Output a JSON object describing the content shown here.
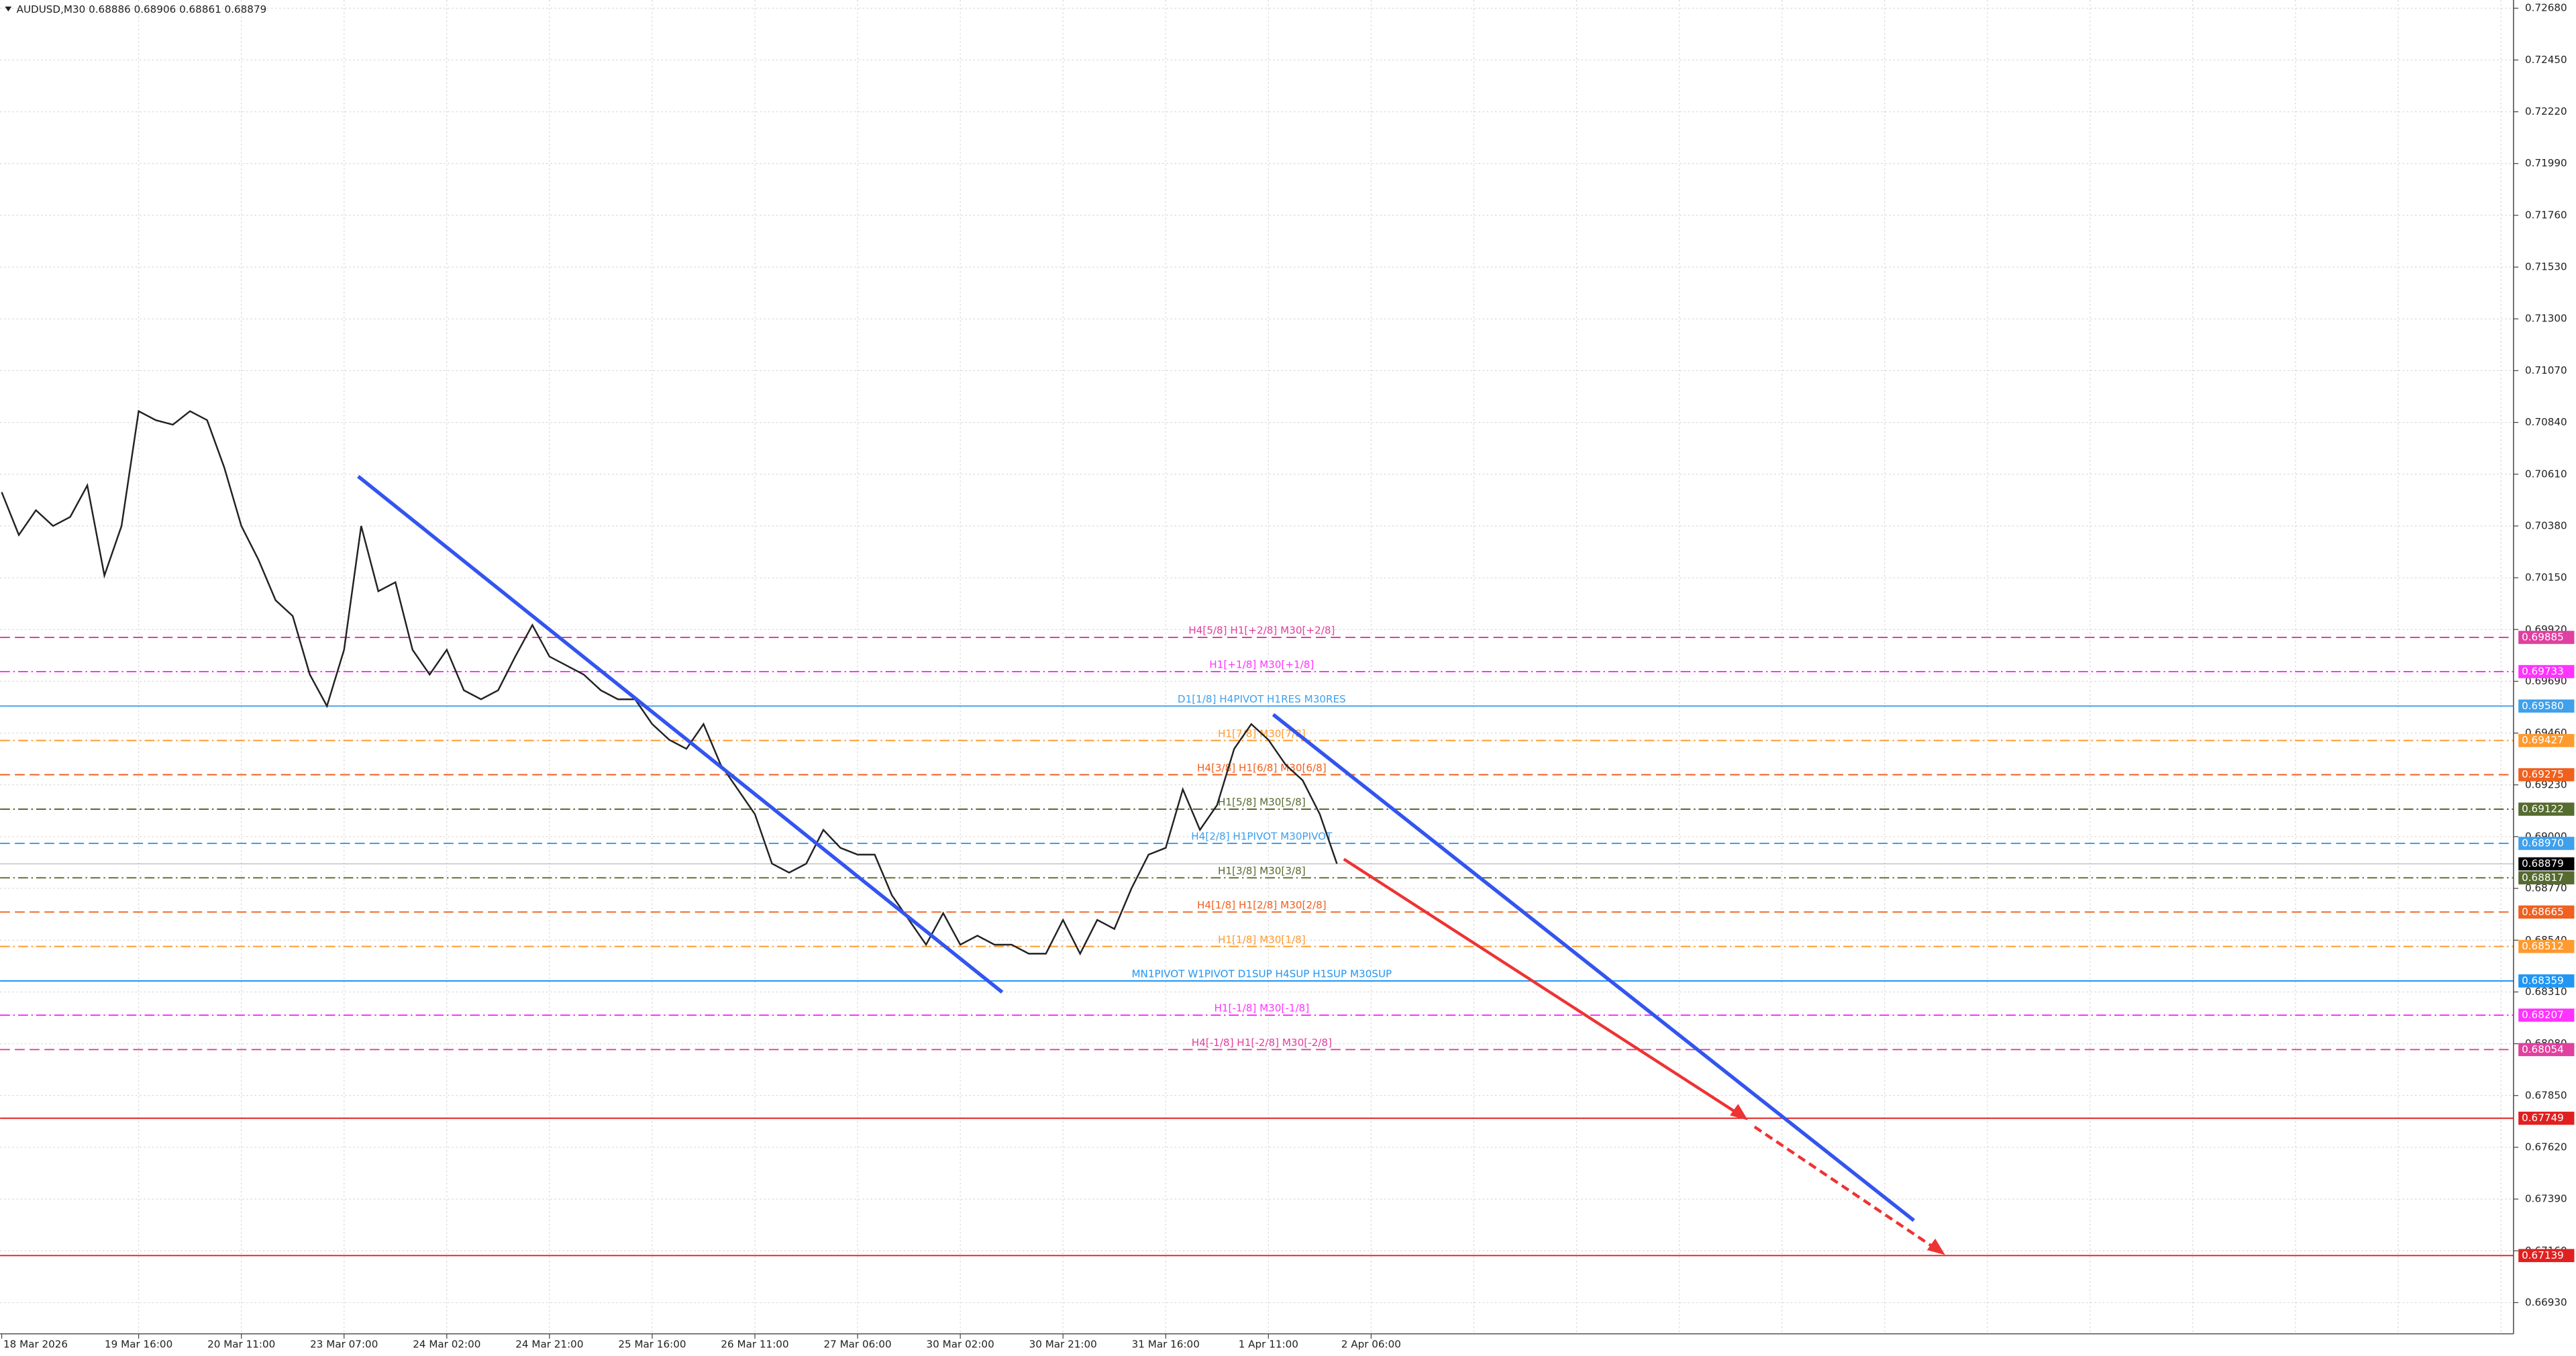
{
  "chart_data": {
    "type": "line",
    "header": "AUDUSD,M30  0.68886 0.68906 0.68861 0.68879",
    "color": "#222222",
    "grid": true,
    "categories": [
      "18 Mar 2026",
      null,
      null,
      null,
      null,
      null,
      null,
      null,
      "19 Mar 16:00",
      null,
      null,
      null,
      null,
      null,
      "20 Mar 11:00",
      null,
      null,
      null,
      null,
      null,
      "23 Mar 07:00",
      null,
      null,
      null,
      null,
      null,
      "24 Mar 02:00",
      null,
      null,
      null,
      null,
      null,
      "24 Mar 21:00",
      null,
      null,
      null,
      null,
      null,
      "25 Mar 16:00",
      null,
      null,
      null,
      null,
      null,
      "26 Mar 11:00",
      null,
      null,
      null,
      null,
      null,
      "27 Mar 06:00",
      null,
      null,
      null,
      null,
      null,
      "30 Mar 02:00",
      null,
      null,
      null,
      null,
      null,
      "30 Mar 21:00",
      null,
      null,
      null,
      null,
      null,
      "31 Mar 16:00",
      null,
      null,
      null,
      null,
      null,
      "1 Apr 11:00",
      null,
      null,
      null,
      null,
      null,
      "2 Apr 06:00"
    ],
    "values": [
      0.7053,
      0.7034,
      0.7045,
      0.7038,
      0.7042,
      0.7056,
      0.7016,
      0.7038,
      0.7089,
      0.7085,
      0.7083,
      0.7089,
      0.7085,
      0.7064,
      0.7038,
      0.7023,
      0.7005,
      0.6998,
      0.6972,
      0.6958,
      0.6983,
      0.7038,
      0.7009,
      0.7013,
      0.6983,
      0.6972,
      0.6983,
      0.6965,
      0.6961,
      0.6965,
      0.698,
      0.6994,
      0.698,
      0.6976,
      0.6972,
      0.6965,
      0.6961,
      0.6961,
      0.695,
      0.6943,
      0.6939,
      0.695,
      0.6932,
      0.6921,
      0.691,
      0.6888,
      0.6884,
      0.6888,
      0.6903,
      0.6895,
      0.6892,
      0.6892,
      0.6874,
      0.6863,
      0.6852,
      0.6866,
      0.6852,
      0.6856,
      0.6852,
      0.6852,
      0.6848,
      0.6848,
      0.6863,
      0.6848,
      0.6863,
      0.6859,
      0.6877,
      0.6892,
      0.6895,
      0.6921,
      0.6903,
      0.6914,
      0.6939,
      0.695,
      0.6943,
      0.6932,
      0.6925,
      0.691,
      0.6888,
      null,
      null
    ],
    "ylim": [
      0.6693,
      0.7268
    ],
    "yticks": [
      {
        "value": 0.7268,
        "label": "0.72680"
      },
      {
        "value": 0.7245,
        "label": "0.72450"
      },
      {
        "value": 0.7222,
        "label": "0.72220"
      },
      {
        "value": 0.7199,
        "label": "0.71990"
      },
      {
        "value": 0.7176,
        "label": "0.71760"
      },
      {
        "value": 0.7153,
        "label": "0.71530"
      },
      {
        "value": 0.713,
        "label": "0.71300"
      },
      {
        "value": 0.7107,
        "label": "0.71070"
      },
      {
        "value": 0.7084,
        "label": "0.70840"
      },
      {
        "value": 0.7061,
        "label": "0.70610"
      },
      {
        "value": 0.7038,
        "label": "0.70380"
      },
      {
        "value": 0.7015,
        "label": "0.70150"
      },
      {
        "value": 0.6992,
        "label": "0.69920"
      },
      {
        "value": 0.6969,
        "label": "0.69690"
      },
      {
        "value": 0.6946,
        "label": "0.69460"
      },
      {
        "value": 0.6923,
        "label": "0.69230"
      },
      {
        "value": 0.69,
        "label": "0.69000"
      },
      {
        "value": 0.6877,
        "label": "0.68770"
      },
      {
        "value": 0.6854,
        "label": "0.68540"
      },
      {
        "value": 0.6831,
        "label": "0.68310"
      },
      {
        "value": 0.6808,
        "label": "0.68080"
      },
      {
        "value": 0.6785,
        "label": "0.67850"
      },
      {
        "value": 0.6762,
        "label": "0.67620"
      },
      {
        "value": 0.6739,
        "label": "0.67390"
      },
      {
        "value": 0.6716,
        "label": "0.67160"
      },
      {
        "value": 0.6693,
        "label": "0.66930"
      }
    ],
    "levels": [
      {
        "label": "H4[5/8] H1[+2/8] M30[+2/8]",
        "value": 0.69885,
        "value_label": "0.69885",
        "color": "#e0409f",
        "style": "dashed"
      },
      {
        "label": "H1[+1/8] M30[+1/8]",
        "value": 0.69733,
        "value_label": "0.69733",
        "color": "#ff33ff",
        "style": "dashdot"
      },
      {
        "label": "D1[1/8] H4PIVOT H1RES M30RES",
        "value": 0.6958,
        "value_label": "0.69580",
        "color": "#3fa0ec",
        "style": "solid"
      },
      {
        "label": "H1[7/8] M30[7/8]",
        "value": 0.69427,
        "value_label": "0.69427",
        "color": "#ff9a2e",
        "style": "dashdot"
      },
      {
        "label": "H4[3/8] H1[6/8] M30[6/8]",
        "value": 0.69275,
        "value_label": "0.69275",
        "color": "#f0601e",
        "style": "dashed"
      },
      {
        "label": "H1[5/8] M30[5/8]",
        "value": 0.69122,
        "value_label": "0.69122",
        "color": "#556b2f",
        "style": "dashdot"
      },
      {
        "label": "H4[2/8] H1PIVOT M30PIVOT",
        "value": 0.6897,
        "value_label": "0.68970",
        "color": "#3fa0ec",
        "style": "dashed"
      },
      {
        "label": "H1[3/8] M30[3/8]",
        "value": 0.68817,
        "value_label": "0.68817",
        "color": "#556b2f",
        "style": "dashdot"
      },
      {
        "label": "H4[1/8] H1[2/8] M30[2/8]",
        "value": 0.68665,
        "value_label": "0.68665",
        "color": "#f0601e",
        "style": "dashed"
      },
      {
        "label": "H1[1/8] M30[1/8]",
        "value": 0.68512,
        "value_label": "0.68512",
        "color": "#ff9a2e",
        "style": "dashdot"
      },
      {
        "label": "MN1PIVOT W1PIVOT D1SUP H4SUP H1SUP M30SUP",
        "value": 0.68359,
        "value_label": "0.68359",
        "color": "#2196f3",
        "style": "solid"
      },
      {
        "label": "H1[-1/8] M30[-1/8]",
        "value": 0.68207,
        "value_label": "0.68207",
        "color": "#ff33ff",
        "style": "dashdot"
      },
      {
        "label": "H4[-1/8] H1[-2/8] M30[-2/8]",
        "value": 0.68054,
        "value_label": "0.68054",
        "color": "#e0409f",
        "style": "dashed"
      },
      {
        "label": null,
        "value": 0.67749,
        "value_label": "0.67749",
        "color": "#e02020",
        "style": "solid"
      },
      {
        "label": null,
        "value": 0.67139,
        "value_label": "0.67139",
        "color": "#e02020",
        "style": "solid"
      }
    ],
    "last_price": {
      "value": 0.68879,
      "value_label": "0.68879",
      "color": "#000000"
    }
  }
}
